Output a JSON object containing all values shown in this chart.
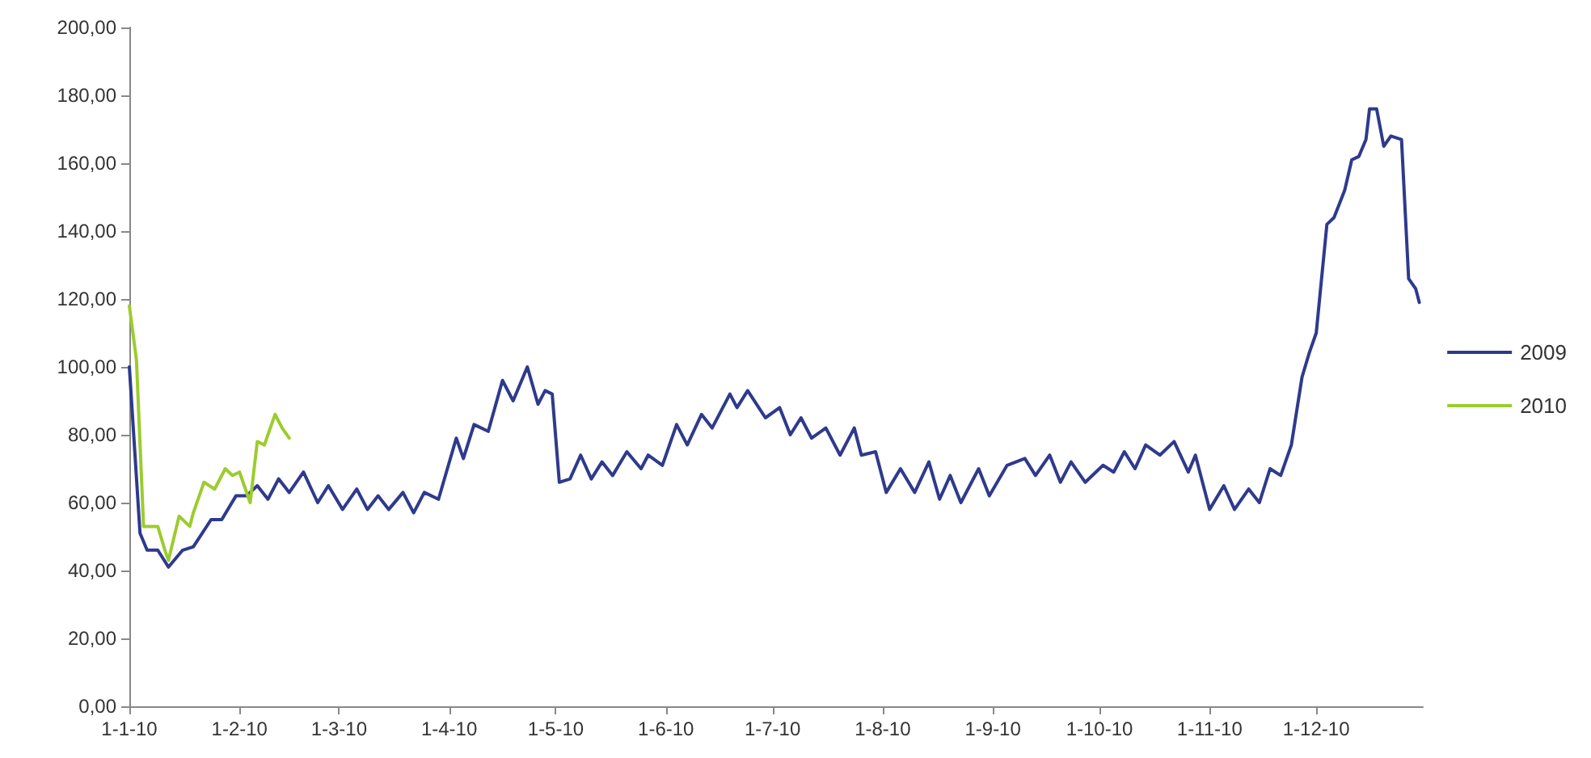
{
  "chart_data": {
    "type": "line",
    "legend": "right",
    "grid": false,
    "marker": "none",
    "line_style": "solid",
    "xlim": [
      "2010-01-01",
      "2010-12-31"
    ],
    "xticks": [
      {
        "value": "2010-01-01",
        "label": "1-1-10"
      },
      {
        "value": "2010-02-01",
        "label": "1-2-10"
      },
      {
        "value": "2010-03-01",
        "label": "1-3-10"
      },
      {
        "value": "2010-04-01",
        "label": "1-4-10"
      },
      {
        "value": "2010-05-01",
        "label": "1-5-10"
      },
      {
        "value": "2010-06-01",
        "label": "1-6-10"
      },
      {
        "value": "2010-07-01",
        "label": "1-7-10"
      },
      {
        "value": "2010-08-01",
        "label": "1-8-10"
      },
      {
        "value": "2010-09-01",
        "label": "1-9-10"
      },
      {
        "value": "2010-10-01",
        "label": "1-10-10"
      },
      {
        "value": "2010-11-01",
        "label": "1-11-10"
      },
      {
        "value": "2010-12-01",
        "label": "1-12-10"
      }
    ],
    "ylim": [
      0,
      200
    ],
    "yticks": [
      {
        "value": 0,
        "label": "0,00"
      },
      {
        "value": 20,
        "label": "20,00"
      },
      {
        "value": 40,
        "label": "40,00"
      },
      {
        "value": 60,
        "label": "60,00"
      },
      {
        "value": 80,
        "label": "80,00"
      },
      {
        "value": 100,
        "label": "100,00"
      },
      {
        "value": 120,
        "label": "120,00"
      },
      {
        "value": 140,
        "label": "140,00"
      },
      {
        "value": 160,
        "label": "160,00"
      },
      {
        "value": 180,
        "label": "180,00"
      },
      {
        "value": 200,
        "label": "200,00"
      }
    ],
    "series": [
      {
        "name": "2009",
        "color": "#2e3a8c",
        "x": [
          "2010-01-01",
          "2010-01-04",
          "2010-01-06",
          "2010-01-09",
          "2010-01-12",
          "2010-01-16",
          "2010-01-19",
          "2010-01-24",
          "2010-01-27",
          "2010-01-31",
          "2010-02-03",
          "2010-02-06",
          "2010-02-09",
          "2010-02-12",
          "2010-02-15",
          "2010-02-19",
          "2010-02-23",
          "2010-02-26",
          "2010-03-02",
          "2010-03-06",
          "2010-03-09",
          "2010-03-12",
          "2010-03-15",
          "2010-03-19",
          "2010-03-22",
          "2010-03-25",
          "2010-03-29",
          "2010-04-03",
          "2010-04-05",
          "2010-04-08",
          "2010-04-12",
          "2010-04-16",
          "2010-04-19",
          "2010-04-23",
          "2010-04-26",
          "2010-04-28",
          "2010-04-30",
          "2010-05-02",
          "2010-05-05",
          "2010-05-08",
          "2010-05-11",
          "2010-05-14",
          "2010-05-17",
          "2010-05-21",
          "2010-05-25",
          "2010-05-27",
          "2010-05-31",
          "2010-06-04",
          "2010-06-07",
          "2010-06-11",
          "2010-06-14",
          "2010-06-19",
          "2010-06-21",
          "2010-06-24",
          "2010-06-29",
          "2010-07-03",
          "2010-07-06",
          "2010-07-09",
          "2010-07-12",
          "2010-07-16",
          "2010-07-20",
          "2010-07-24",
          "2010-07-26",
          "2010-07-30",
          "2010-08-02",
          "2010-08-06",
          "2010-08-10",
          "2010-08-14",
          "2010-08-17",
          "2010-08-20",
          "2010-08-23",
          "2010-08-28",
          "2010-08-31",
          "2010-09-05",
          "2010-09-10",
          "2010-09-13",
          "2010-09-17",
          "2010-09-20",
          "2010-09-23",
          "2010-09-27",
          "2010-10-02",
          "2010-10-05",
          "2010-10-08",
          "2010-10-11",
          "2010-10-14",
          "2010-10-18",
          "2010-10-22",
          "2010-10-26",
          "2010-10-28",
          "2010-11-01",
          "2010-11-05",
          "2010-11-08",
          "2010-11-12",
          "2010-11-15",
          "2010-11-18",
          "2010-11-21",
          "2010-11-24",
          "2010-11-27",
          "2010-11-29",
          "2010-12-01",
          "2010-12-04",
          "2010-12-06",
          "2010-12-09",
          "2010-12-11",
          "2010-12-13",
          "2010-12-15",
          "2010-12-16",
          "2010-12-18",
          "2010-12-20",
          "2010-12-22",
          "2010-12-25",
          "2010-12-27",
          "2010-12-29",
          "2010-12-30"
        ],
        "values": [
          100,
          51,
          46,
          46,
          41,
          46,
          47,
          55,
          55,
          62,
          62,
          65,
          61,
          67,
          63,
          69,
          60,
          65,
          58,
          64,
          58,
          62,
          58,
          63,
          57,
          63,
          61,
          79,
          73,
          83,
          81,
          96,
          90,
          100,
          89,
          93,
          92,
          66,
          67,
          74,
          67,
          72,
          68,
          75,
          70,
          74,
          71,
          83,
          77,
          86,
          82,
          92,
          88,
          93,
          85,
          88,
          80,
          85,
          79,
          82,
          74,
          82,
          74,
          75,
          63,
          70,
          63,
          72,
          61,
          68,
          60,
          70,
          62,
          71,
          73,
          68,
          74,
          66,
          72,
          66,
          71,
          69,
          75,
          70,
          77,
          74,
          78,
          69,
          74,
          58,
          65,
          58,
          64,
          60,
          70,
          68,
          77,
          97,
          104,
          110,
          142,
          144,
          152,
          161,
          162,
          167,
          176,
          176,
          165,
          168,
          167,
          126,
          123,
          119
        ]
      },
      {
        "name": "2010",
        "color": "#9ccc2e",
        "x": [
          "2010-01-01",
          "2010-01-03",
          "2010-01-05",
          "2010-01-09",
          "2010-01-11",
          "2010-01-12",
          "2010-01-15",
          "2010-01-18",
          "2010-01-19",
          "2010-01-22",
          "2010-01-25",
          "2010-01-28",
          "2010-01-30",
          "2010-02-01",
          "2010-02-04",
          "2010-02-06",
          "2010-02-08",
          "2010-02-11",
          "2010-02-13",
          "2010-02-15"
        ],
        "values": [
          118,
          102,
          53,
          53,
          46,
          43,
          56,
          53,
          57,
          66,
          64,
          70,
          68,
          69,
          60,
          78,
          77,
          86,
          82,
          79
        ]
      }
    ]
  }
}
